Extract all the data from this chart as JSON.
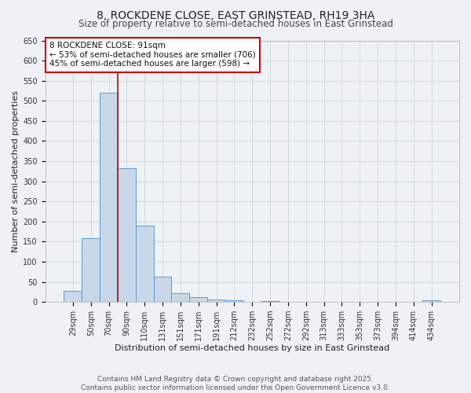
{
  "title_line1": "8, ROCKDENE CLOSE, EAST GRINSTEAD, RH19 3HA",
  "title_line2": "Size of property relative to semi-detached houses in East Grinstead",
  "xlabel": "Distribution of semi-detached houses by size in East Grinstead",
  "ylabel": "Number of semi-detached properties",
  "categories": [
    "29sqm",
    "50sqm",
    "70sqm",
    "90sqm",
    "110sqm",
    "131sqm",
    "151sqm",
    "171sqm",
    "191sqm",
    "212sqm",
    "232sqm",
    "252sqm",
    "272sqm",
    "292sqm",
    "313sqm",
    "333sqm",
    "353sqm",
    "373sqm",
    "394sqm",
    "414sqm",
    "434sqm"
  ],
  "bar_values": [
    28,
    158,
    520,
    332,
    190,
    62,
    21,
    12,
    7,
    5,
    0,
    3,
    0,
    0,
    0,
    0,
    0,
    0,
    0,
    0,
    4
  ],
  "bar_color": "#c8d8e8",
  "bar_edge_color": "#5b9bd5",
  "ylim": [
    0,
    650
  ],
  "yticks": [
    0,
    50,
    100,
    150,
    200,
    250,
    300,
    350,
    400,
    450,
    500,
    550,
    600,
    650
  ],
  "property_line_x": 2.5,
  "property_line_color": "#cc0000",
  "annotation_title": "8 ROCKDENE CLOSE: 91sqm",
  "annotation_line1": "← 53% of semi-detached houses are smaller (706)",
  "annotation_line2": "45% of semi-detached houses are larger (598) →",
  "annotation_box_color": "#ffffff",
  "annotation_box_edge_color": "#cc0000",
  "background_color": "#eef2f7",
  "footer_line1": "Contains HM Land Registry data © Crown copyright and database right 2025.",
  "footer_line2": "Contains public sector information licensed under the Open Government Licence v3.0.",
  "title_fontsize": 10,
  "subtitle_fontsize": 8.5,
  "axis_label_fontsize": 8,
  "tick_fontsize": 7,
  "annotation_fontsize": 7.5,
  "footer_fontsize": 6.5
}
